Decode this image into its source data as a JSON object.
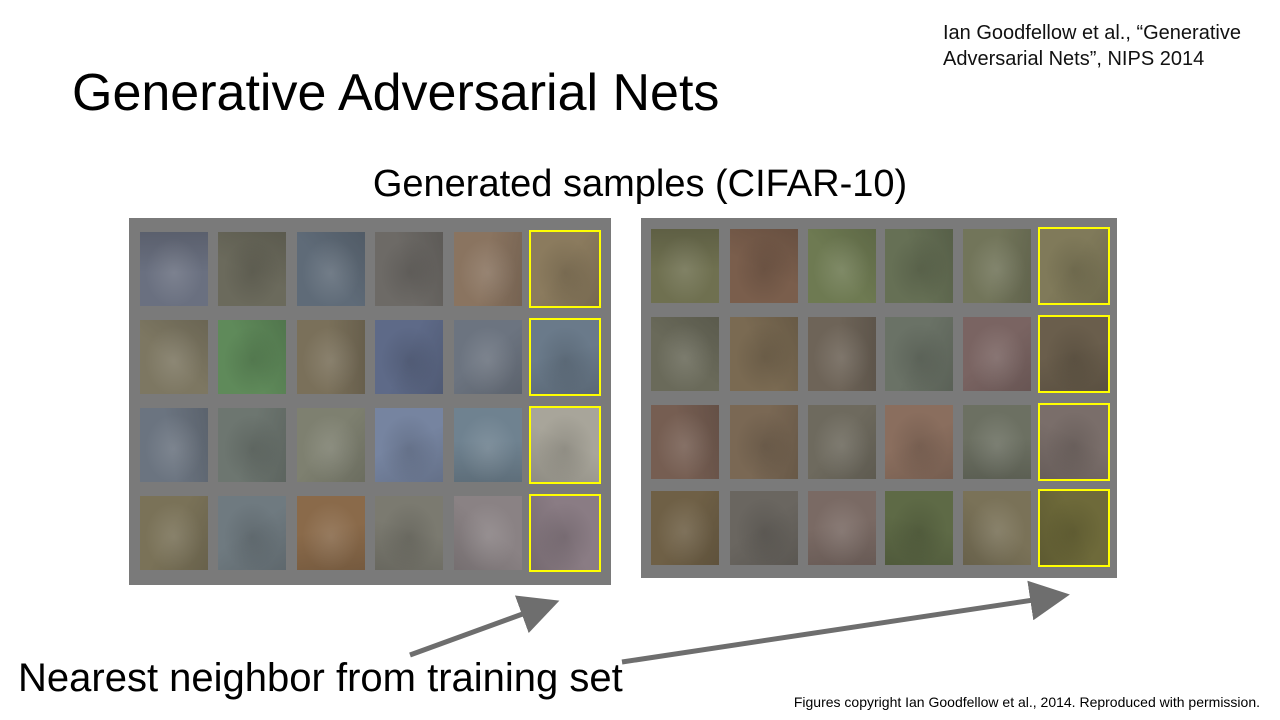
{
  "slide": {
    "citation_line1": "Ian Goodfellow et al., “Generative",
    "citation_line2": "Adversarial Nets”, NIPS 2014",
    "title": "Generative Adversarial Nets",
    "subtitle": "Generated samples (CIFAR-10)",
    "caption": "Nearest neighbor from training set",
    "copyright": "Figures copyright Ian Goodfellow et al., 2014. Reproduced with permission."
  },
  "colors": {
    "grid_background": "#7a7a7a",
    "nearest_neighbor_highlight": "#ffff00",
    "arrow": "#6e6e6e"
  },
  "grids": [
    {
      "name": "left-sample-grid",
      "rows": [
        [
          "#6a7080",
          "#6b6a5c",
          "#5f6b78",
          "#6d6a66",
          "#8a7460",
          "#8b7b5e"
        ],
        [
          "#7d7762",
          "#5f8a5a",
          "#7a705a",
          "#5e6a88",
          "#6c7480",
          "#6a7a8a"
        ],
        [
          "#6b7480",
          "#6d7670",
          "#7e8070",
          "#7684a0",
          "#6f8290",
          "#a8a59a"
        ],
        [
          "#7a7258",
          "#6f7a80",
          "#8a6a4a",
          "#7b7a70",
          "#8a8284",
          "#8a7c84"
        ]
      ]
    },
    {
      "name": "right-sample-grid",
      "rows": [
        [
          "#6f7050",
          "#7a5e4c",
          "#6e7a52",
          "#667055",
          "#72755a",
          "#807a5a"
        ],
        [
          "#6a6a5a",
          "#7a6a52",
          "#6e6458",
          "#6a7266",
          "#7a6462",
          "#6a5e4c"
        ],
        [
          "#765e52",
          "#7a6854",
          "#6e6a5e",
          "#8a6e5e",
          "#6c7062",
          "#7a6e6a"
        ],
        [
          "#6f6046",
          "#6a6660",
          "#7a6a64",
          "#5e6a46",
          "#7a7258",
          "#6e6a3a"
        ]
      ]
    }
  ]
}
